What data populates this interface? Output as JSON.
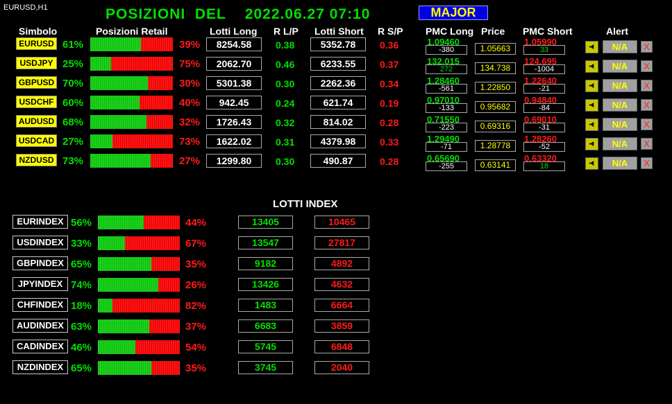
{
  "chart_label": "EURUSD,H1",
  "title": "POSIZIONI  DEL    2022.06.27 07:10",
  "group": "MAJOR",
  "headers": {
    "symbol": "Simbolo",
    "retail": "Posizioni Retail",
    "lots_long": "Lotti Long",
    "rlp": "R L/P",
    "lots_short": "Lotti Short",
    "rsp": "R S/P",
    "pmc_long": "PMC Long",
    "price": "Price",
    "pmc_short": "PMC Short",
    "alert": "Alert"
  },
  "pairs": [
    {
      "symbol": "EURUSD",
      "long_pct": "61%",
      "long_frac": 0.61,
      "short_pct": "39%",
      "lots_long": "8254.58",
      "rlp": "0.38",
      "lots_short": "5352.78",
      "rsp": "0.36",
      "pmc_long": "1.09460",
      "pmc_long_diff": "-380",
      "price": "1.05663",
      "pmc_short": "1.05990",
      "pmc_short_diff": "33",
      "alert": "N/A"
    },
    {
      "symbol": "USDJPY",
      "long_pct": "25%",
      "long_frac": 0.25,
      "short_pct": "75%",
      "lots_long": "2062.70",
      "rlp": "0.46",
      "lots_short": "6233.55",
      "rsp": "0.37",
      "pmc_long": "132.015",
      "pmc_long_diff": "272",
      "price": "134.738",
      "pmc_short": "124.695",
      "pmc_short_diff": "-1004",
      "alert": "N/A"
    },
    {
      "symbol": "GBPUSD",
      "long_pct": "70%",
      "long_frac": 0.7,
      "short_pct": "30%",
      "lots_long": "5301.38",
      "rlp": "0.30",
      "lots_short": "2262.36",
      "rsp": "0.34",
      "pmc_long": "1.28460",
      "pmc_long_diff": "-561",
      "price": "1.22850",
      "pmc_short": "1.22640",
      "pmc_short_diff": "-21",
      "alert": "N/A"
    },
    {
      "symbol": "USDCHF",
      "long_pct": "60%",
      "long_frac": 0.6,
      "short_pct": "40%",
      "lots_long": "942.45",
      "rlp": "0.24",
      "lots_short": "621.74",
      "rsp": "0.19",
      "pmc_long": "0.97010",
      "pmc_long_diff": "-133",
      "price": "0.95682",
      "pmc_short": "0.94840",
      "pmc_short_diff": "-84",
      "alert": "N/A"
    },
    {
      "symbol": "AUDUSD",
      "long_pct": "68%",
      "long_frac": 0.68,
      "short_pct": "32%",
      "lots_long": "1726.43",
      "rlp": "0.32",
      "lots_short": "814.02",
      "rsp": "0.28",
      "pmc_long": "0.71550",
      "pmc_long_diff": "-223",
      "price": "0.69316",
      "pmc_short": "0.69010",
      "pmc_short_diff": "-31",
      "alert": "N/A"
    },
    {
      "symbol": "USDCAD",
      "long_pct": "27%",
      "long_frac": 0.27,
      "short_pct": "73%",
      "lots_long": "1622.02",
      "rlp": "0.31",
      "lots_short": "4379.98",
      "rsp": "0.33",
      "pmc_long": "1.29490",
      "pmc_long_diff": "-71",
      "price": "1.28778",
      "pmc_short": "1.28260",
      "pmc_short_diff": "-52",
      "alert": "N/A"
    },
    {
      "symbol": "NZDUSD",
      "long_pct": "73%",
      "long_frac": 0.73,
      "short_pct": "27%",
      "lots_long": "1299.80",
      "rlp": "0.30",
      "lots_short": "490.87",
      "rsp": "0.28",
      "pmc_long": "0.65690",
      "pmc_long_diff": "-255",
      "price": "0.63141",
      "pmc_short": "0.63320",
      "pmc_short_diff": "18",
      "alert": "N/A"
    }
  ],
  "index_title": "LOTTI INDEX",
  "indexes": [
    {
      "name": "EURINDEX",
      "long_pct": "56%",
      "long_frac": 0.56,
      "short_pct": "44%",
      "lots_long": "13405",
      "lots_short": "10465"
    },
    {
      "name": "USDINDEX",
      "long_pct": "33%",
      "long_frac": 0.33,
      "short_pct": "67%",
      "lots_long": "13547",
      "lots_short": "27817"
    },
    {
      "name": "GBPINDEX",
      "long_pct": "65%",
      "long_frac": 0.65,
      "short_pct": "35%",
      "lots_long": "9182",
      "lots_short": "4892"
    },
    {
      "name": "JPYINDEX",
      "long_pct": "74%",
      "long_frac": 0.74,
      "short_pct": "26%",
      "lots_long": "13426",
      "lots_short": "4632"
    },
    {
      "name": "CHFINDEX",
      "long_pct": "18%",
      "long_frac": 0.18,
      "short_pct": "82%",
      "lots_long": "1483",
      "lots_short": "6664"
    },
    {
      "name": "AUDINDEX",
      "long_pct": "63%",
      "long_frac": 0.63,
      "short_pct": "37%",
      "lots_long": "6683",
      "lots_short": "3859"
    },
    {
      "name": "CADINDEX",
      "long_pct": "46%",
      "long_frac": 0.46,
      "short_pct": "54%",
      "lots_long": "5745",
      "lots_short": "6848"
    },
    {
      "name": "NZDINDEX",
      "long_pct": "65%",
      "long_frac": 0.65,
      "short_pct": "35%",
      "lots_long": "3745",
      "lots_short": "2040"
    }
  ],
  "icons": {
    "alert": "bell-icon",
    "remove": "close-icon"
  },
  "close_glyph": "X",
  "colors": {
    "long": "#00e000",
    "short": "#ff1a1a",
    "symbol_bg": "#ffff00",
    "major_bg": "#0000e0"
  }
}
